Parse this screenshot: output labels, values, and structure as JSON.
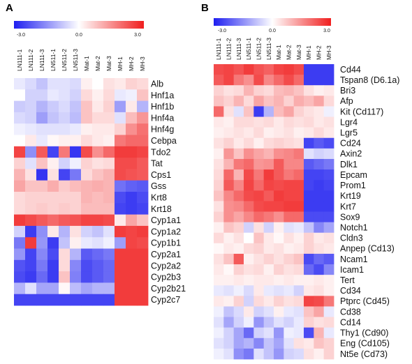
{
  "chart_data": [
    {
      "type": "heatmap",
      "panel": "A",
      "color_scale": {
        "min_label": "-3.0",
        "mid_label": "0.0",
        "max_label": "3.0",
        "min": -3.0,
        "mid": 0.0,
        "max": 3.0,
        "low_color": "#1e1ef0",
        "mid_color": "#ffffff",
        "high_color": "#f01e1e"
      },
      "columns": [
        "LN111-1",
        "LN111-2",
        "LN111-3",
        "LN511-1",
        "LN511-2",
        "LN511-3",
        "Mat-1",
        "Mat-2",
        "Mat-3",
        "MH-1",
        "MH-2",
        "MH-3"
      ],
      "rows": [
        "Alb",
        "Hnf1a",
        "Hnf1b",
        "Hnf4a",
        "Hnf4g",
        "Cebpa",
        "Tdo2",
        "Tat",
        "Cps1",
        "Gss",
        "Krt8",
        "Krt18",
        "Cyp1a1",
        "Cyp1a2",
        "Cyp1b1",
        "Cyp2a1",
        "Cyp2a2",
        "Cyp2b3",
        "Cyp2b21",
        "Cyp2c7"
      ],
      "values": [
        [
          -0.3,
          -0.5,
          -0.8,
          -0.4,
          -0.4,
          -0.5,
          0.2,
          0.0,
          0.4,
          0.3,
          0.6,
          0.5
        ],
        [
          0.0,
          -0.6,
          -0.6,
          -0.3,
          -0.4,
          -0.6,
          0.5,
          0.2,
          0.5,
          -0.3,
          -0.2,
          0.8
        ],
        [
          -0.7,
          -0.6,
          -1.0,
          -0.7,
          -0.5,
          -0.8,
          0.8,
          0.3,
          0.6,
          -1.3,
          0.3,
          -1.0
        ],
        [
          -0.5,
          -0.6,
          -1.3,
          -0.8,
          -0.6,
          -0.9,
          0.8,
          0.5,
          0.5,
          -0.4,
          0.9,
          1.4
        ],
        [
          -0.2,
          -0.3,
          -0.4,
          -0.4,
          -0.4,
          -0.3,
          0.2,
          0.3,
          0.3,
          0.6,
          1.5,
          1.9
        ],
        [
          0.0,
          0.3,
          -0.3,
          0.1,
          0.2,
          0.2,
          0.5,
          0.3,
          0.2,
          1.8,
          2.0,
          2.0
        ],
        [
          2.5,
          -1.5,
          2.2,
          -2.5,
          1.8,
          -2.7,
          2.4,
          1.5,
          2.0,
          2.6,
          2.6,
          2.5
        ],
        [
          0.6,
          -0.4,
          0.8,
          0.2,
          -0.6,
          -0.2,
          0.6,
          0.4,
          0.5,
          2.4,
          2.4,
          2.2
        ],
        [
          1.0,
          0.4,
          -2.7,
          0.4,
          -2.5,
          -1.8,
          0.5,
          0.8,
          1.0,
          2.4,
          2.3,
          2.2
        ],
        [
          1.2,
          0.8,
          0.8,
          1.1,
          0.7,
          0.9,
          1.0,
          1.1,
          1.0,
          -1.9,
          -2.1,
          -2.2
        ],
        [
          0.5,
          0.6,
          0.6,
          0.6,
          0.6,
          0.6,
          1.0,
          0.9,
          1.0,
          -2.4,
          -2.6,
          -2.4
        ],
        [
          0.5,
          0.6,
          0.7,
          0.6,
          0.7,
          0.6,
          0.9,
          0.9,
          0.9,
          -2.5,
          -2.6,
          -2.5
        ],
        [
          2.6,
          2.4,
          2.2,
          2.0,
          2.2,
          2.3,
          2.5,
          2.5,
          2.4,
          0.3,
          1.2,
          0.8
        ],
        [
          -0.6,
          -2.6,
          -1.5,
          0.3,
          -1.0,
          0.4,
          -0.6,
          -0.8,
          -0.4,
          2.6,
          2.5,
          2.6
        ],
        [
          -1.8,
          2.6,
          -1.4,
          -2.6,
          -0.8,
          0.2,
          -0.3,
          -0.4,
          -0.2,
          -1.3,
          2.5,
          2.4
        ],
        [
          -1.4,
          -2.5,
          -1.6,
          -2.4,
          0.5,
          -1.0,
          -2.2,
          -2.0,
          -1.8,
          2.6,
          2.6,
          2.6
        ],
        [
          -2.3,
          -2.5,
          -1.8,
          -2.6,
          0.5,
          -1.6,
          -2.4,
          -2.2,
          -2.0,
          2.6,
          2.6,
          2.6
        ],
        [
          -2.4,
          -2.6,
          -2.0,
          -2.6,
          0.8,
          -1.7,
          -2.4,
          -2.2,
          -2.0,
          2.6,
          2.6,
          2.6
        ],
        [
          -1.0,
          -0.4,
          -1.2,
          -1.2,
          0.1,
          -0.9,
          -1.2,
          -1.0,
          -1.0,
          2.6,
          2.6,
          2.6
        ],
        [
          -2.5,
          -2.5,
          -2.5,
          -2.5,
          -2.5,
          -2.5,
          -2.5,
          -2.5,
          -2.5,
          2.6,
          2.6,
          2.6
        ]
      ]
    },
    {
      "type": "heatmap",
      "panel": "B",
      "color_scale": {
        "min_label": "-3.0",
        "mid_label": "0.0",
        "max_label": "3.0",
        "min": -3.0,
        "mid": 0.0,
        "max": 3.0,
        "low_color": "#1e1ef0",
        "mid_color": "#ffffff",
        "high_color": "#f01e1e"
      },
      "columns": [
        "LN111-1",
        "LN111-2",
        "LN111-3",
        "LN511-1",
        "LN511-2",
        "LN511-3",
        "Mat-1",
        "Mat-2",
        "Mat-3",
        "MH-1",
        "MH-2",
        "MH-3"
      ],
      "rows": [
        "Cd44",
        "Tspan8 (D6.1a)",
        "Bri3",
        "Afp",
        "Kit (Cd117)",
        "Lgr4",
        "Lgr5",
        "Cd24",
        "Axin2",
        "Dlk1",
        "Epcam",
        "Prom1",
        "Krt19",
        "Krt7",
        "Sox9",
        "Notch1",
        "Cldn3",
        "Anpep (Cd13)",
        "Ncam1",
        "Icam1",
        "Tert",
        "Cd34",
        "Ptprc (Cd45)",
        "Cd38",
        "Cd14",
        "Thy1 (Cd90)",
        "Eng (Cd105)",
        "Nt5e (Cd73)"
      ],
      "values": [
        [
          2.4,
          2.5,
          2.3,
          2.6,
          2.3,
          2.1,
          2.5,
          2.6,
          2.4,
          -2.6,
          -2.6,
          -2.6
        ],
        [
          2.2,
          2.5,
          1.8,
          1.5,
          2.4,
          1.6,
          2.0,
          2.4,
          2.0,
          -2.6,
          -2.6,
          -2.6
        ],
        [
          0.6,
          0.4,
          0.5,
          1.0,
          0.6,
          0.5,
          0.9,
          1.0,
          0.8,
          0.4,
          0.2,
          0.3
        ],
        [
          0.8,
          0.6,
          1.0,
          0.5,
          1.2,
          0.8,
          1.0,
          0.6,
          1.1,
          0.9,
          1.2,
          0.5
        ],
        [
          2.0,
          0.4,
          -0.4,
          0.8,
          -2.6,
          -1.0,
          0.9,
          1.2,
          0.6,
          0.4,
          0.3,
          -0.2
        ],
        [
          0.3,
          0.2,
          0.5,
          0.5,
          0.4,
          0.5,
          0.3,
          0.5,
          0.4,
          0.5,
          0.3,
          0.4
        ],
        [
          0.2,
          0.3,
          0.4,
          0.3,
          0.5,
          0.2,
          0.3,
          0.4,
          0.2,
          0.3,
          0.5,
          0.3
        ],
        [
          0.4,
          0.6,
          0.3,
          0.5,
          0.2,
          0.5,
          0.6,
          0.5,
          0.4,
          -2.5,
          -2.2,
          -2.4
        ],
        [
          0.2,
          1.4,
          0.8,
          1.5,
          1.2,
          1.0,
          1.5,
          1.6,
          1.8,
          -0.4,
          -0.6,
          -0.5
        ],
        [
          0.4,
          1.0,
          1.8,
          2.0,
          1.4,
          1.5,
          2.2,
          1.6,
          1.6,
          -2.2,
          -2.0,
          -1.8
        ],
        [
          0.5,
          2.0,
          1.0,
          2.4,
          1.8,
          2.6,
          2.2,
          1.8,
          2.0,
          -2.5,
          -2.5,
          -2.4
        ],
        [
          0.6,
          2.2,
          1.6,
          2.5,
          2.0,
          2.5,
          2.4,
          2.5,
          2.5,
          -2.5,
          -2.6,
          -2.5
        ],
        [
          0.8,
          1.6,
          2.0,
          2.4,
          2.5,
          2.2,
          2.6,
          2.5,
          2.5,
          -2.6,
          -2.6,
          -2.6
        ],
        [
          0.4,
          1.5,
          1.6,
          2.0,
          2.4,
          2.5,
          2.5,
          2.6,
          2.6,
          -2.6,
          -2.6,
          -2.6
        ],
        [
          0.6,
          1.5,
          1.2,
          1.6,
          2.0,
          1.8,
          1.5,
          2.0,
          2.0,
          -2.4,
          -2.4,
          -2.4
        ],
        [
          0.2,
          0.8,
          0.6,
          -0.6,
          0.4,
          -0.6,
          0.2,
          -0.4,
          -0.3,
          -0.8,
          -1.6,
          -1.2
        ],
        [
          0.5,
          0.2,
          0.4,
          0.0,
          0.8,
          0.3,
          0.1,
          0.4,
          0.2,
          0.6,
          0.3,
          0.4
        ],
        [
          0.1,
          0.3,
          0.2,
          0.5,
          0.6,
          0.3,
          0.4,
          0.2,
          0.3,
          0.6,
          0.4,
          0.3
        ],
        [
          0.4,
          0.8,
          2.2,
          0.2,
          0.4,
          0.6,
          0.4,
          0.6,
          0.8,
          -2.4,
          -2.0,
          -2.2
        ],
        [
          0.3,
          0.1,
          0.6,
          0.4,
          0.5,
          0.2,
          0.6,
          0.4,
          0.5,
          -2.0,
          -2.4,
          -1.6
        ],
        [
          0.2,
          0.2,
          0.3,
          0.2,
          0.3,
          0.3,
          0.2,
          0.3,
          0.2,
          0.2,
          0.3,
          0.2
        ],
        [
          -0.3,
          -0.4,
          -0.2,
          -0.5,
          0.3,
          -0.3,
          -0.4,
          -0.3,
          -0.6,
          0.3,
          0.4,
          0.2
        ],
        [
          0.3,
          0.2,
          0.6,
          -0.6,
          0.5,
          0.3,
          0.6,
          0.4,
          0.5,
          2.5,
          2.4,
          1.8
        ],
        [
          -0.2,
          -0.8,
          -0.5,
          0.3,
          -0.6,
          -0.4,
          0.2,
          -0.3,
          -0.4,
          0.8,
          1.2,
          -0.3
        ],
        [
          -0.4,
          -1.2,
          -0.6,
          -0.2,
          -1.4,
          -0.8,
          -0.4,
          -0.6,
          -0.3,
          0.6,
          0.4,
          0.5
        ],
        [
          -0.2,
          -0.6,
          -1.2,
          -2.0,
          -0.6,
          -0.4,
          -1.4,
          -0.2,
          -0.3,
          -2.4,
          1.0,
          -0.3
        ],
        [
          -0.4,
          -0.6,
          -1.2,
          -1.0,
          -1.6,
          -0.8,
          -1.2,
          -0.4,
          0.4,
          0.3,
          0.8,
          0.6
        ],
        [
          -0.2,
          -0.4,
          -1.5,
          -1.8,
          -0.4,
          -0.8,
          -1.4,
          -0.6,
          -0.5,
          0.4,
          0.2,
          0.6
        ]
      ]
    }
  ]
}
